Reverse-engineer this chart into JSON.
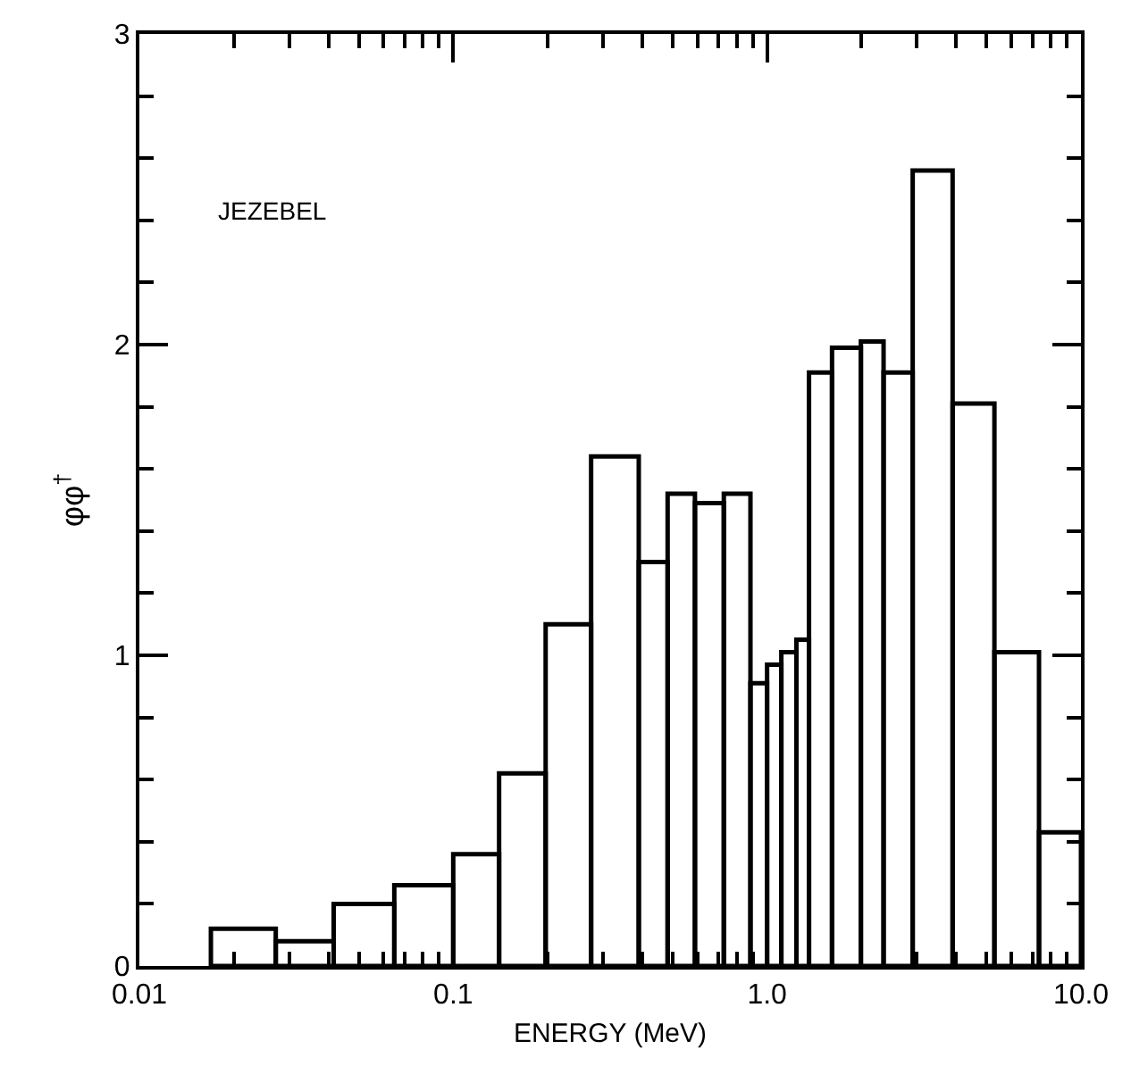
{
  "chart_data": {
    "type": "histogram",
    "xlabel": "ENERGY (MeV)",
    "ylabel": "φφ$^{†}$",
    "annotations": [
      "JEZEBEL"
    ],
    "bins": [
      0.0169,
      0.0272,
      0.0416,
      0.0649,
      0.1,
      0.14,
      0.197,
      0.275,
      0.39,
      0.482,
      0.589,
      0.728,
      0.885,
      1.0,
      1.11,
      1.24,
      1.36,
      1.61,
      1.99,
      2.35,
      2.91,
      3.9,
      5.3,
      7.35,
      10
    ],
    "values": [
      0.12,
      0.08,
      0.2,
      0.26,
      0.36,
      0.62,
      1.1,
      1.64,
      1.3,
      1.52,
      1.49,
      1.52,
      0.91,
      0.97,
      1.01,
      1.05,
      1.91,
      1.99,
      2.01,
      1.91,
      2.56,
      1.81,
      1.01,
      0.43
    ],
    "color": "#000000",
    "log": "x",
    "xlim": [
      0.01,
      10
    ],
    "xticks": [
      {
        "value": 0.01,
        "label": "0.01"
      },
      {
        "value": 0.1,
        "label": "0.1"
      },
      {
        "value": 1,
        "label": "1.0"
      },
      {
        "value": 10,
        "label": "10.0"
      }
    ],
    "ylim": [
      0,
      3
    ],
    "yticks": [
      0,
      1,
      2,
      3
    ]
  }
}
